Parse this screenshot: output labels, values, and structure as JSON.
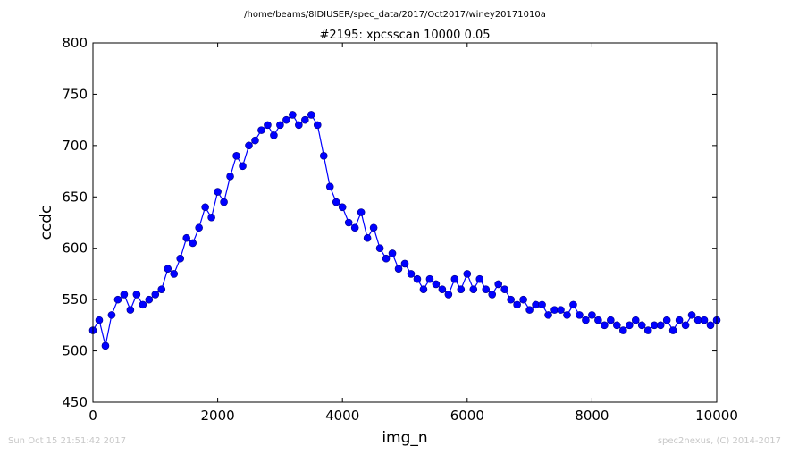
{
  "footer": {
    "timestamp": "Sun Oct 15 21:51:42 2017",
    "credit": "spec2nexus, (C) 2014-2017"
  },
  "chart_data": {
    "type": "line",
    "suptitle": "/home/beams/8IDIUSER/spec_data/2017/Oct2017/winey20171010a",
    "title": "#2195: xpcsscan 10000 0.05",
    "xlabel": "img_n",
    "ylabel": "ccdc",
    "xlim": [
      0,
      10000
    ],
    "ylim": [
      450,
      800
    ],
    "xticks": [
      0,
      2000,
      4000,
      6000,
      8000,
      10000
    ],
    "yticks": [
      450,
      500,
      550,
      600,
      650,
      700,
      750,
      800
    ],
    "grid": false,
    "marker": "circle",
    "colors": {
      "series": "#0000ff"
    },
    "series": [
      {
        "x": [
          0,
          100,
          200,
          300,
          400,
          500,
          600,
          700,
          800,
          900,
          1000,
          1100,
          1200,
          1300,
          1400,
          1500,
          1600,
          1700,
          1800,
          1900,
          2000,
          2100,
          2200,
          2300,
          2400,
          2500,
          2600,
          2700,
          2800,
          2900,
          3000,
          3100,
          3200,
          3300,
          3400,
          3500,
          3600,
          3700,
          3800,
          3900,
          4000,
          4100,
          4200,
          4300,
          4400,
          4500,
          4600,
          4700,
          4800,
          4900,
          5000,
          5100,
          5200,
          5300,
          5400,
          5500,
          5600,
          5700,
          5800,
          5900,
          6000,
          6100,
          6200,
          6300,
          6400,
          6500,
          6600,
          6700,
          6800,
          6900,
          7000,
          7100,
          7200,
          7300,
          7400,
          7500,
          7600,
          7700,
          7800,
          7900,
          8000,
          8100,
          8200,
          8300,
          8400,
          8500,
          8600,
          8700,
          8800,
          8900,
          9000,
          9100,
          9200,
          9300,
          9400,
          9500,
          9600,
          9700,
          9800,
          9900,
          10000
        ],
        "y": [
          520,
          530,
          505,
          535,
          550,
          555,
          540,
          555,
          545,
          550,
          555,
          560,
          580,
          575,
          590,
          610,
          605,
          620,
          640,
          630,
          655,
          645,
          670,
          690,
          680,
          700,
          705,
          715,
          720,
          710,
          720,
          725,
          730,
          720,
          725,
          730,
          720,
          690,
          660,
          645,
          640,
          625,
          620,
          635,
          610,
          620,
          600,
          590,
          595,
          580,
          585,
          575,
          570,
          560,
          570,
          565,
          560,
          555,
          570,
          560,
          575,
          560,
          570,
          560,
          555,
          565,
          560,
          550,
          545,
          550,
          540,
          545,
          545,
          535,
          540,
          540,
          535,
          545,
          535,
          530,
          535,
          530,
          525,
          530,
          525,
          520,
          525,
          530,
          525,
          520,
          525,
          525,
          530,
          520,
          530,
          525,
          535,
          530,
          530,
          525,
          530
        ]
      }
    ]
  }
}
